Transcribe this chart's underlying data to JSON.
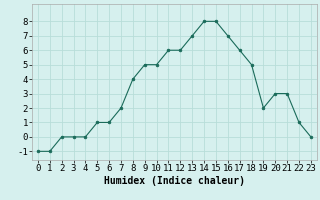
{
  "x": [
    0,
    1,
    2,
    3,
    4,
    5,
    6,
    7,
    8,
    9,
    10,
    11,
    12,
    13,
    14,
    15,
    16,
    17,
    18,
    19,
    20,
    21,
    22,
    23
  ],
  "y": [
    -1,
    -1,
    0,
    0,
    0,
    1,
    1,
    2,
    4,
    5,
    5,
    6,
    6,
    7,
    8,
    8,
    7,
    6,
    5,
    2,
    3,
    3,
    1,
    0
  ],
  "line_color": "#1a6b5a",
  "marker": "o",
  "marker_size": 2.0,
  "bg_color": "#d6f0ee",
  "grid_color": "#b8ddd9",
  "xlabel": "Humidex (Indice chaleur)",
  "xlabel_fontsize": 7,
  "ylabel_ticks": [
    -1,
    0,
    1,
    2,
    3,
    4,
    5,
    6,
    7,
    8
  ],
  "xlim": [
    -0.5,
    23.5
  ],
  "ylim": [
    -1.6,
    9.2
  ],
  "tick_fontsize": 6.5
}
